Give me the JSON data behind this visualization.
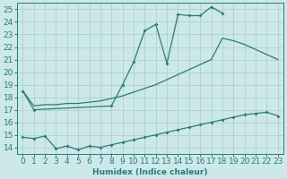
{
  "color": "#2a7b7b",
  "bg_color": "#cce8e8",
  "grid_color": "#aacccc",
  "xlabel": "Humidex (Indice chaleur)",
  "xlim": [
    -0.5,
    23.5
  ],
  "ylim": [
    13.5,
    25.5
  ],
  "yticks": [
    14,
    15,
    16,
    17,
    18,
    19,
    20,
    21,
    22,
    23,
    24,
    25
  ],
  "xticks": [
    0,
    1,
    2,
    3,
    4,
    5,
    6,
    7,
    8,
    9,
    10,
    11,
    12,
    13,
    14,
    15,
    16,
    17,
    18,
    19,
    20,
    21,
    22,
    23
  ],
  "font_size": 6.5,
  "main_x": [
    0,
    1,
    8,
    9,
    10,
    11,
    12,
    13,
    14,
    15,
    16,
    17,
    18
  ],
  "main_y": [
    18.5,
    17.0,
    17.3,
    19.0,
    20.8,
    23.3,
    23.8,
    20.7,
    24.6,
    24.5,
    24.5,
    25.2,
    24.7
  ],
  "upper_x": [
    0,
    1,
    2,
    3,
    4,
    5,
    6,
    7,
    8,
    9,
    10,
    11,
    12,
    13,
    14,
    15,
    16,
    17,
    18,
    19,
    20,
    21,
    22,
    23
  ],
  "upper_y": [
    18.5,
    17.3,
    17.4,
    17.4,
    17.5,
    17.5,
    17.6,
    17.7,
    17.9,
    18.1,
    18.4,
    18.7,
    19.0,
    19.4,
    19.8,
    20.2,
    20.6,
    21.0,
    22.7,
    22.5,
    22.2,
    21.8,
    21.4,
    21.0
  ],
  "lower_x": [
    0,
    1,
    2,
    3,
    4,
    5,
    6,
    7,
    8,
    9,
    10,
    11,
    12,
    13,
    14,
    15,
    16,
    17,
    18,
    19,
    20,
    21,
    22,
    23
  ],
  "lower_y": [
    14.8,
    14.7,
    14.9,
    13.9,
    14.1,
    13.8,
    14.1,
    14.0,
    14.2,
    14.4,
    14.6,
    14.8,
    15.0,
    15.2,
    15.4,
    15.6,
    15.8,
    16.0,
    16.2,
    16.4,
    16.6,
    16.7,
    16.8,
    16.5
  ]
}
